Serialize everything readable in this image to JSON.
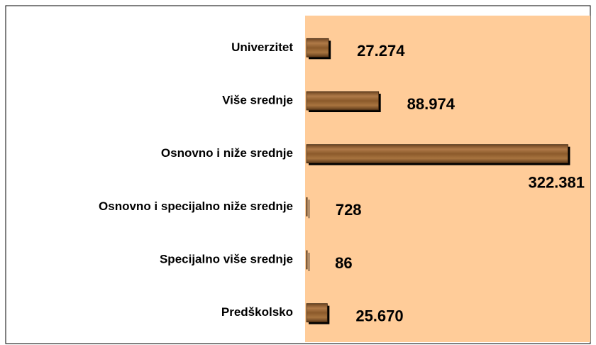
{
  "chart_data": {
    "type": "bar",
    "orientation": "horizontal",
    "categories": [
      "Univerzitet",
      "Više srednje",
      "Osnovno i niže srednje",
      "Osnovno i specijalno niže srednje",
      "Specijalno više srednje",
      "Predškolsko"
    ],
    "values": [
      27274,
      88974,
      322381,
      728,
      86,
      25670
    ],
    "value_labels": [
      "27.274",
      "88.974",
      "322.381",
      "728",
      "86",
      "25.670"
    ],
    "color": "#8b5a2b",
    "plot_background": "#ffcc99",
    "xlim": [
      0,
      350000
    ]
  }
}
